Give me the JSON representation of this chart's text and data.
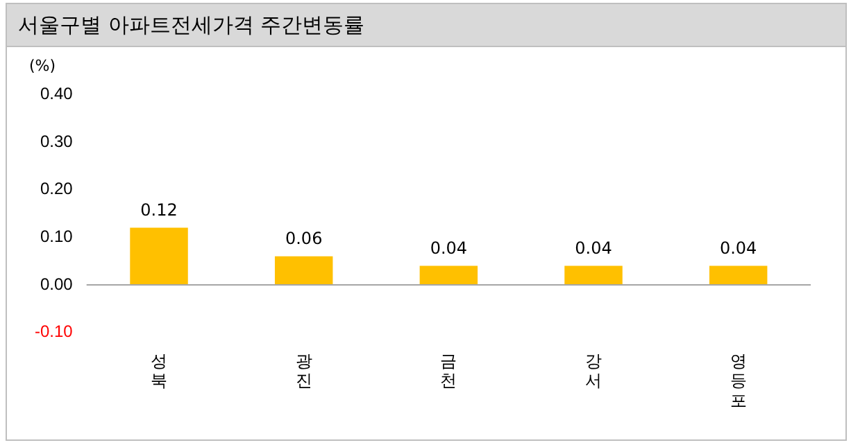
{
  "chart_data": {
    "type": "bar",
    "title": "서울구별 아파트전세가격 주간변동률",
    "ylabel": "(%)",
    "categories": [
      "성북",
      "광진",
      "금천",
      "강서",
      "영등포"
    ],
    "values": [
      0.12,
      0.06,
      0.04,
      0.04,
      0.04
    ],
    "color": "#ffc000",
    "value_labels": [
      "0.12",
      "0.06",
      "0.04",
      "0.04",
      "0.04"
    ],
    "ylim": [
      -0.1,
      0.4
    ],
    "yticks": [
      {
        "value": -0.1,
        "label": "-0.10"
      },
      {
        "value": 0,
        "label": "0.00"
      },
      {
        "value": 0.1,
        "label": "0.10"
      },
      {
        "value": 0.2,
        "label": "0.20"
      },
      {
        "value": 0.3,
        "label": "0.30"
      },
      {
        "value": 0.4,
        "label": "0.40"
      }
    ],
    "ref_lines": [
      {
        "axis": "y",
        "value": 0,
        "color": "#a6a6a6"
      }
    ],
    "grid": false,
    "legend": false
  }
}
